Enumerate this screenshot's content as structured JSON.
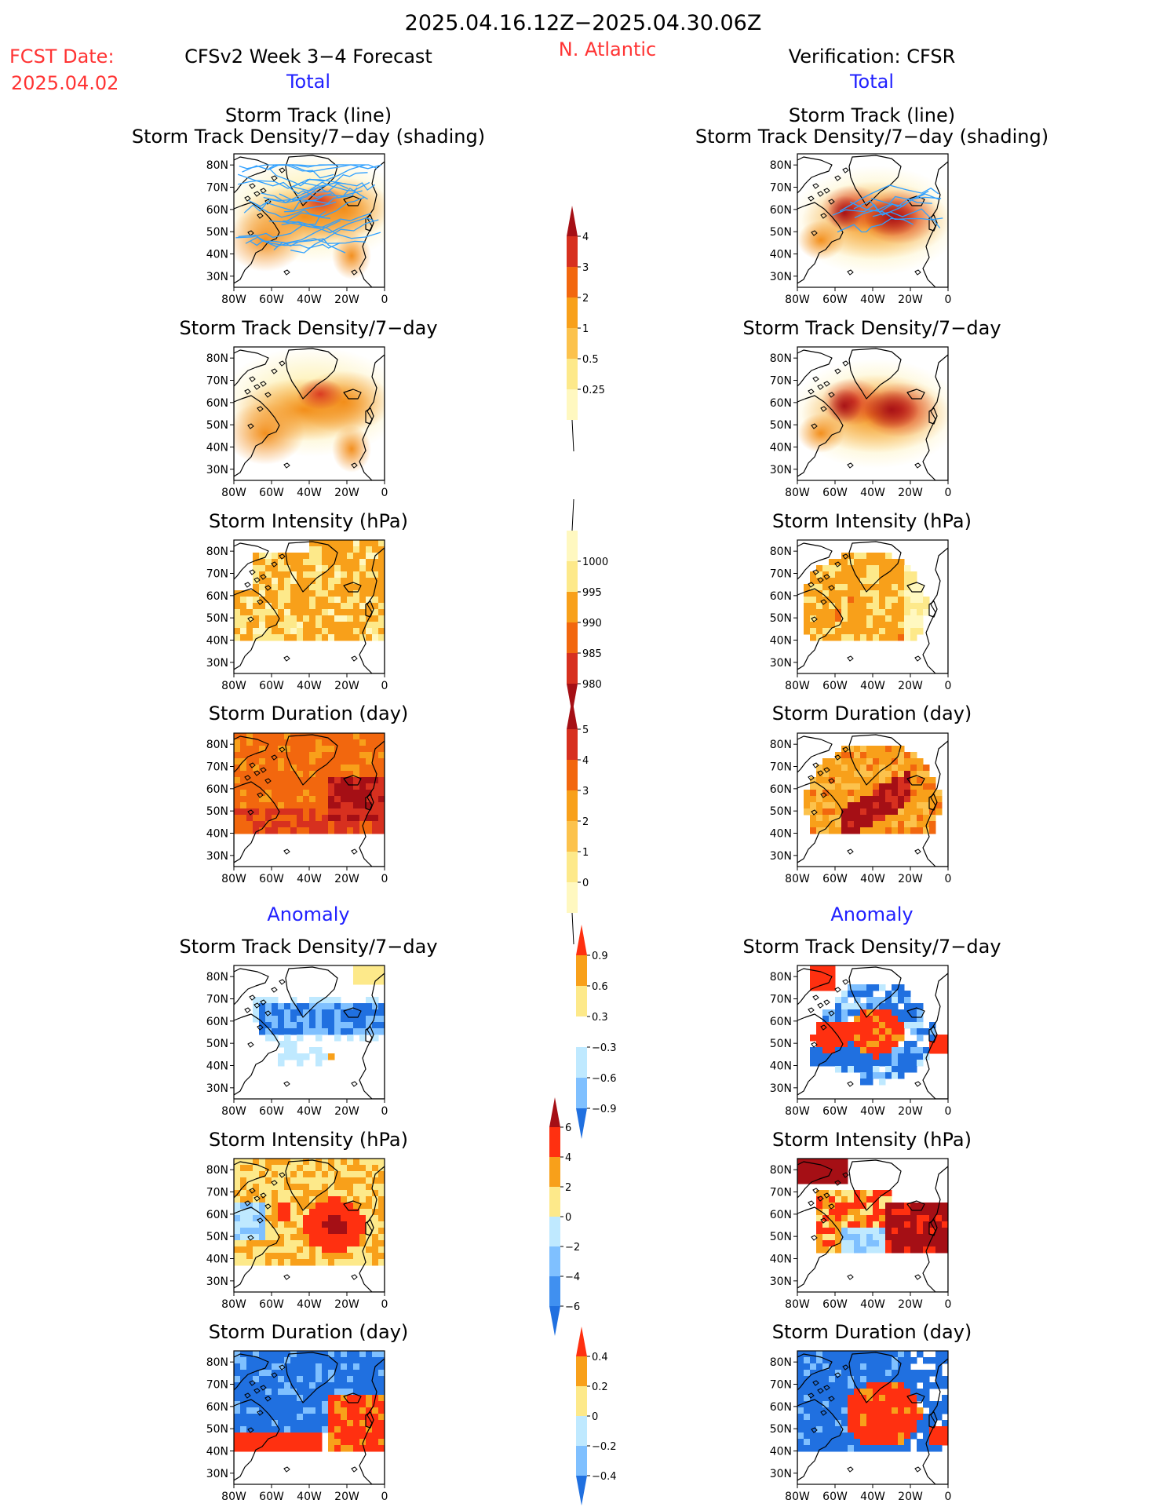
{
  "header": {
    "date_range": "2025.04.16.12Z−2025.04.30.06Z",
    "region": "N. Atlantic",
    "fcst_label": "FCST Date:",
    "fcst_date": "2025.04.02",
    "forecast_title": "CFSv2 Week 3−4 Forecast",
    "verification_title": "Verification: CFSR",
    "total_label": "Total",
    "anomaly_label": "Anomaly"
  },
  "colors": {
    "red_text": "#ff3333",
    "blue_text": "#2020ff",
    "track_line": "#30a0ff",
    "land_outline": "#000000"
  },
  "panel_titles": {
    "track_line": "Storm Track (line)",
    "track_shading": "Storm Track Density/7−day (shading)",
    "density": "Storm Track Density/7−day",
    "intensity": "Storm Intensity (hPa)",
    "duration": "Storm Duration (day)"
  },
  "axes": {
    "lat_ticks": [
      "80N",
      "70N",
      "60N",
      "50N",
      "40N",
      "30N"
    ],
    "lon_ticks": [
      "80W",
      "60W",
      "40W",
      "20W",
      "0"
    ]
  },
  "colorbars": [
    {
      "id": "total-density",
      "labels": [
        "4",
        "3",
        "2",
        "1",
        "0.5",
        "0.25"
      ],
      "colors": [
        "#a50f15",
        "#d7301f",
        "#f2670e",
        "#f8a01a",
        "#fcc24c",
        "#fde98a",
        "#fff8c0"
      ]
    },
    {
      "id": "total-intensity",
      "labels": [
        "1000",
        "995",
        "990",
        "985",
        "980"
      ],
      "colors": [
        "#fff8c0",
        "#fde98a",
        "#f8a01a",
        "#f2670e",
        "#d7301f",
        "#a50f15"
      ]
    },
    {
      "id": "total-duration",
      "labels": [
        "5",
        "4",
        "3",
        "2",
        "1",
        "0"
      ],
      "colors": [
        "#a50f15",
        "#d7301f",
        "#f2670e",
        "#f8a01a",
        "#fcc24c",
        "#fde98a",
        "#fff8c0"
      ]
    },
    {
      "id": "anom-density",
      "labels": [
        "0.9",
        "0.6",
        "0.3",
        "−0.3",
        "−0.6",
        "−0.9"
      ],
      "colors": [
        "#ff3010",
        "#f8a01a",
        "#fde98a",
        "#ffffff",
        "#bfe9ff",
        "#7fc0ff",
        "#2070e0"
      ]
    },
    {
      "id": "anom-intensity",
      "labels": [
        "6",
        "4",
        "2",
        "0",
        "−2",
        "−4",
        "−6"
      ],
      "colors": [
        "#a50f15",
        "#ff3010",
        "#f8a01a",
        "#fde98a",
        "#bfe9ff",
        "#7fc0ff",
        "#4090f0",
        "#2070e0"
      ]
    },
    {
      "id": "anom-duration",
      "labels": [
        "0.4",
        "0.2",
        "0",
        "−0.2",
        "−0.4"
      ],
      "colors": [
        "#ff3010",
        "#f8a01a",
        "#fde98a",
        "#bfe9ff",
        "#7fc0ff",
        "#2070e0"
      ]
    }
  ]
}
